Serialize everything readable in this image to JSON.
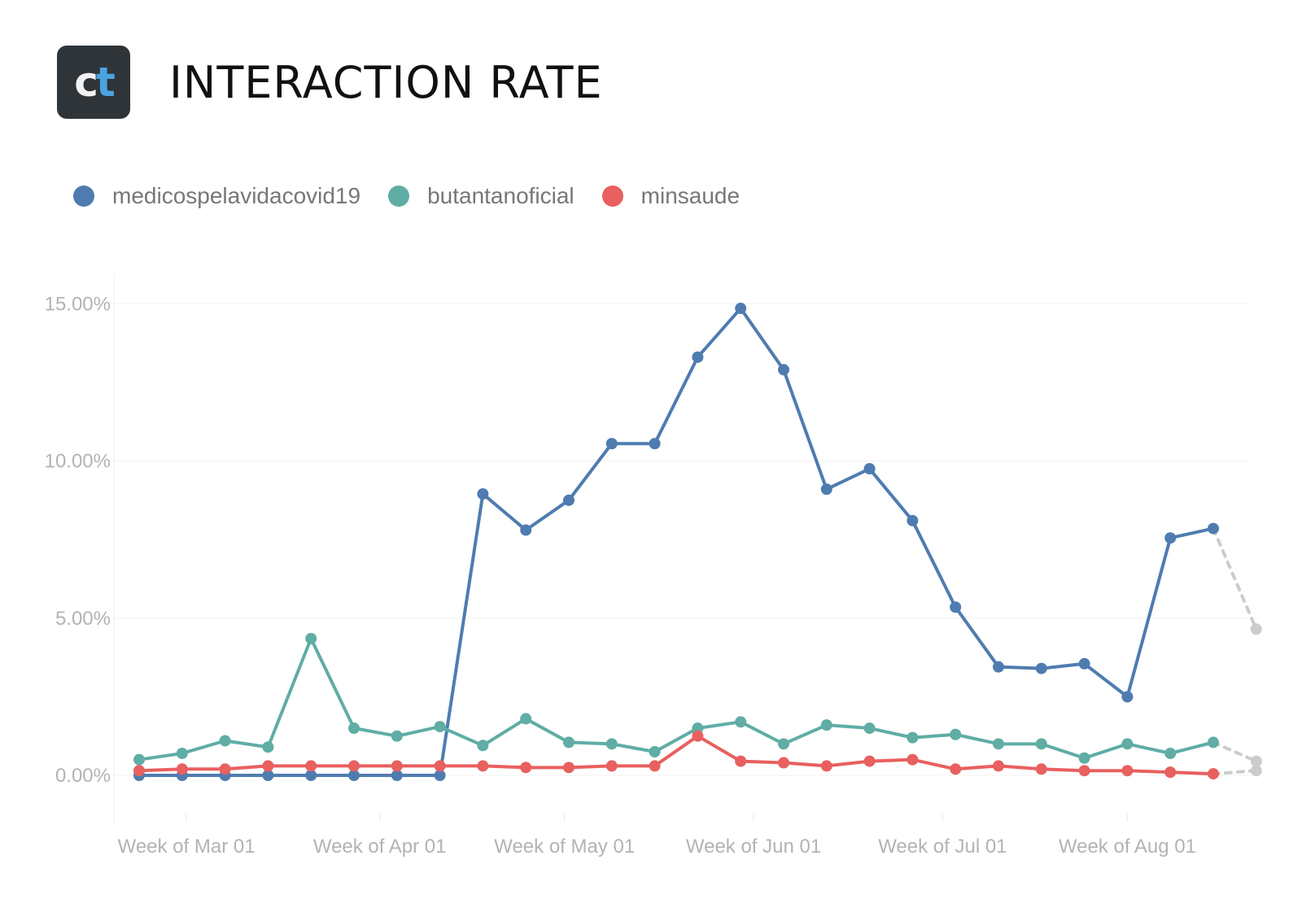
{
  "header": {
    "logo_c": "c",
    "logo_t": "t",
    "title": "INTERACTION RATE"
  },
  "colors": {
    "logo_bg": "#2f3439",
    "logo_accent": "#4aa3df",
    "ghost": "#cccccc"
  },
  "chart_data": {
    "type": "line",
    "title": "INTERACTION RATE",
    "xlabel": "",
    "ylabel": "",
    "ylim": [
      -1.5,
      16
    ],
    "y_ticks": [
      {
        "value": 0,
        "label": "0.00%"
      },
      {
        "value": 5,
        "label": "5.00%"
      },
      {
        "value": 10,
        "label": "10.00%"
      },
      {
        "value": 15,
        "label": "15.00%"
      }
    ],
    "x_ticks": [
      {
        "index": 1.1,
        "label": "Week of Mar 01"
      },
      {
        "index": 5.6,
        "label": "Week of Apr 01"
      },
      {
        "index": 9.9,
        "label": "Week of May 01"
      },
      {
        "index": 14.3,
        "label": "Week of Jun 01"
      },
      {
        "index": 18.7,
        "label": "Week of Jul 01"
      },
      {
        "index": 23.0,
        "label": "Week of Aug 01"
      }
    ],
    "grid": true,
    "legend_position": "top-left",
    "series": [
      {
        "name": "medicospelavidacovid19",
        "color": "#4f7cb0",
        "values": [
          0.0,
          0.0,
          0.0,
          0.0,
          0.0,
          0.0,
          0.0,
          0.0,
          8.95,
          7.8,
          8.75,
          10.55,
          10.55,
          13.3,
          14.85,
          12.9,
          9.1,
          9.75,
          8.1,
          5.35,
          3.45,
          3.4,
          3.55,
          2.5,
          7.55,
          7.85
        ],
        "projected": 4.65
      },
      {
        "name": "butantanoficial",
        "color": "#5fada5",
        "values": [
          0.5,
          0.7,
          1.1,
          0.9,
          4.35,
          1.5,
          1.25,
          1.55,
          0.95,
          1.8,
          1.05,
          1.0,
          0.75,
          1.5,
          1.7,
          1.0,
          1.6,
          1.5,
          1.2,
          1.3,
          1.0,
          1.0,
          0.55,
          1.0,
          0.7,
          1.05
        ],
        "projected": 0.45
      },
      {
        "name": "minsaude",
        "color": "#e8605f",
        "values": [
          0.15,
          0.2,
          0.2,
          0.3,
          0.3,
          0.3,
          0.3,
          0.3,
          0.3,
          0.25,
          0.25,
          0.3,
          0.3,
          1.25,
          0.45,
          0.4,
          0.3,
          0.45,
          0.5,
          0.2,
          0.3,
          0.2,
          0.15,
          0.15,
          0.1,
          0.05
        ],
        "projected": 0.15
      }
    ]
  }
}
